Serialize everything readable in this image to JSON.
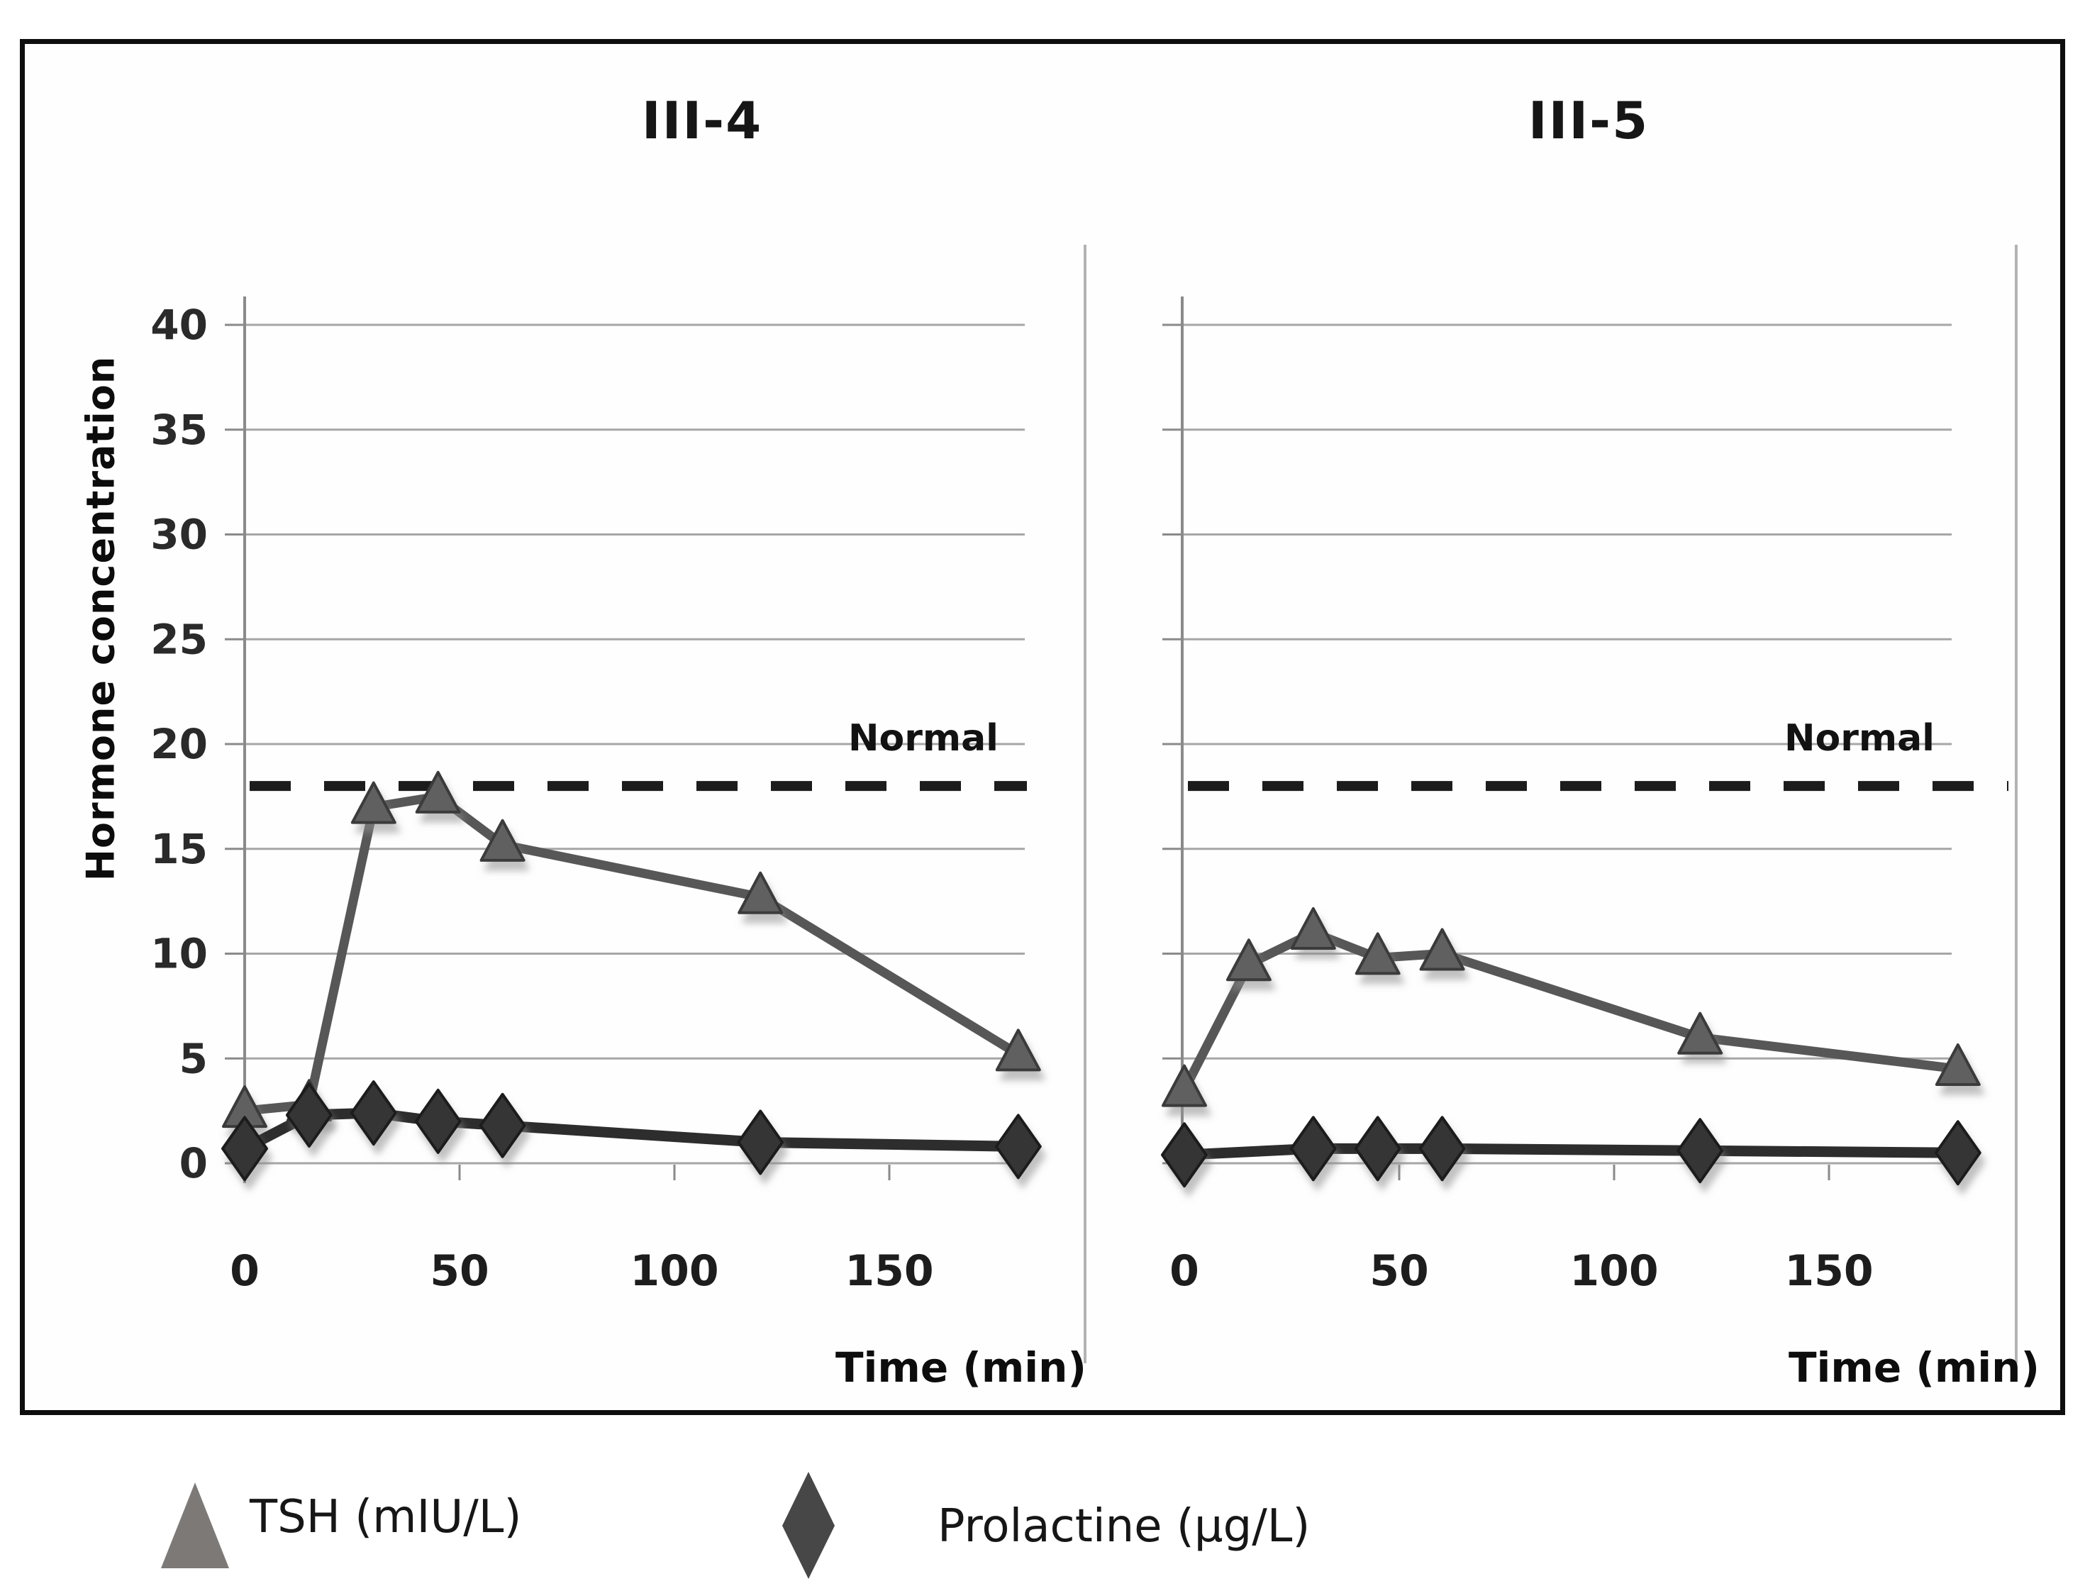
{
  "figure": {
    "titles": [
      "III-4",
      "III-5"
    ],
    "y_axis_label": "Hormone concentration",
    "x_axis_label": "Time (min)",
    "normal_label": "Normal"
  },
  "legend": {
    "items": [
      {
        "label": "TSH (mIU/L)",
        "marker": "triangle-icon"
      },
      {
        "label": "Prolactine (µg/L)",
        "marker": "diamond-icon"
      }
    ]
  },
  "colors": {
    "tsh_line": "#575757",
    "tsh_marker_fill": "#616161",
    "tsh_marker_edge": "#3a3a3a",
    "prolactine_line": "#2d2d2d",
    "prolactine_marker_fill": "#353535",
    "prolactine_marker_edge": "#1f1f1f",
    "gridline": "#a6a6a6",
    "axis_line": "#8a8a8a",
    "panel_border": "#b3b3b3",
    "normal_dash": "#1c1c1c",
    "tick_text": "#2a2a2a",
    "legend_triangle": "#7d7976",
    "legend_diamond": "#474747"
  },
  "chart_data": [
    {
      "type": "line",
      "title": "III-4",
      "xlabel": "Time (min)",
      "ylabel": "Hormone concentration",
      "xlim": [
        0,
        195
      ],
      "ylim": [
        0,
        43
      ],
      "xticks": [
        0,
        50,
        100,
        150
      ],
      "yticks": [
        0,
        5,
        10,
        15,
        20,
        25,
        30,
        35,
        40
      ],
      "grid": true,
      "normal_line_y": 18,
      "normal_label": "Normal",
      "series": [
        {
          "name": "TSH (mIU/L)",
          "marker": "triangle",
          "x": [
            0,
            15,
            30,
            45,
            60,
            120,
            180
          ],
          "y": [
            2.5,
            2.8,
            17.0,
            17.5,
            15.2,
            12.7,
            5.2
          ]
        },
        {
          "name": "Prolactine (µg/L)",
          "marker": "diamond",
          "x": [
            0,
            15,
            30,
            45,
            60,
            120,
            180
          ],
          "y": [
            0.7,
            2.3,
            2.4,
            2.0,
            1.8,
            1.0,
            0.8
          ]
        }
      ]
    },
    {
      "type": "line",
      "title": "III-5",
      "xlabel": "Time (min)",
      "ylabel": "Hormone concentration",
      "xlim": [
        0,
        195
      ],
      "ylim": [
        0,
        43
      ],
      "xticks": [
        0,
        50,
        100,
        150
      ],
      "yticks": [
        0,
        5,
        10,
        15,
        20,
        25,
        30,
        35,
        40
      ],
      "grid": true,
      "normal_line_y": 18,
      "normal_label": "Normal",
      "series": [
        {
          "name": "TSH (mIU/L)",
          "marker": "triangle",
          "x": [
            0,
            15,
            30,
            45,
            60,
            120,
            180
          ],
          "y": [
            3.5,
            9.5,
            11.0,
            9.8,
            10.0,
            6.0,
            4.5
          ]
        },
        {
          "name": "Prolactine (µg/L)",
          "marker": "diamond",
          "x": [
            0,
            30,
            45,
            60,
            120,
            180
          ],
          "y": [
            0.4,
            0.7,
            0.7,
            0.7,
            0.6,
            0.5
          ]
        }
      ]
    }
  ]
}
